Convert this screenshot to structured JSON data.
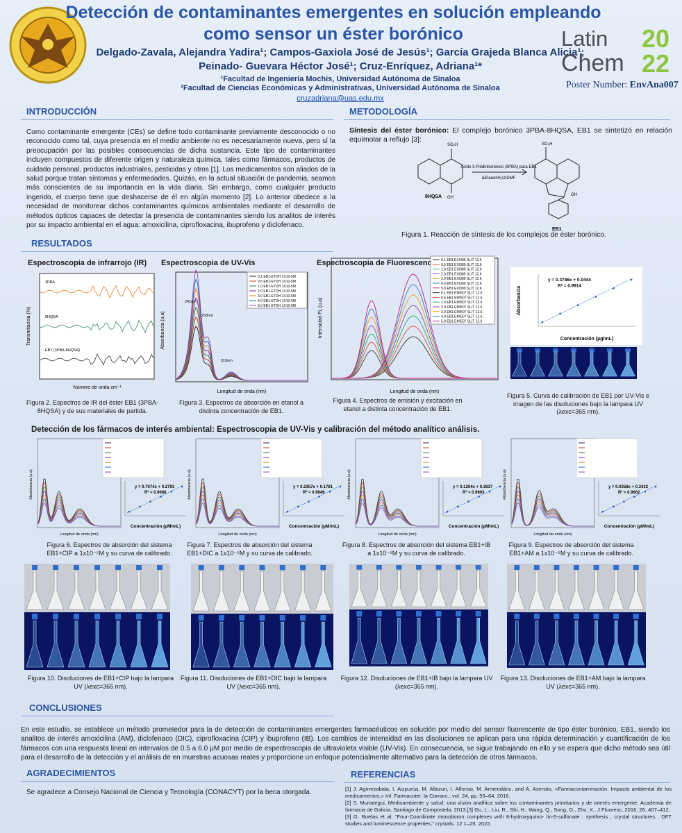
{
  "header": {
    "title_line1": "Detección de contaminantes emergentes en solución empleando",
    "title_line2": "como sensor un éster borónico",
    "authors_line1": "Delgado-Zavala, Alejandra Yadira¹; Campos-Gaxiola José de Jesús¹; García Grajeda Blanca Alicia¹;",
    "authors_line2": "Peinado- Guevara Héctor José¹; Cruz-Enríquez, Adriana¹*",
    "affiliation1": "¹Facultad de Ingeniería Mochis, Universidad Autónoma de Sinaloa",
    "affiliation2": "²Facultad de Ciencias Económicas y Administrativas, Universidad Autónoma de Sinaloa",
    "email": "cruzadriana@uas.edu.mx",
    "logo_latin": "Latin",
    "logo_chem": "Chem",
    "logo_20": "20",
    "logo_22": "22",
    "poster_number_label": "Poster Number:",
    "poster_number": "EnvAna007"
  },
  "introduction": {
    "heading": "INTRODUCCIÓN",
    "text": "Como contaminante emergente (CEs) se define todo contaminante previamente desconocido o no reconocido como tal, cuya presencia en el medio ambiente no es necesariamente nueva, pero sí la preocupación por las posibles consecuencias de dicha sustancia. Este tipo de contaminantes incluyen compuestos de diferente origen y naturaleza química, tales como fármacos, productos de cuidado personal, productos industriales, pesticidas y otros [1]. Los medicamentos son aliados de la salud porque tratan síntomas y enfermedades. Quizás, en la actual situación de pandemia, seamos más conscientes de su importancia en la vida diaria. Sin embargo, como cualquier producto ingerido, el cuerpo tiene que deshacerse de él en algún momento [2]. Lo anterior obedece a la necesidad de monitorear dichos contaminantes químicos ambientales mediante el desarrollo de métodos ópticos capaces de detectar la presencia de contaminantes siendo los analitos de interés por su impacto ambiental en el agua: amoxicilina, ciprofloxacina, ibuprofeno y diclofenaco."
  },
  "methodology": {
    "heading": "METODOLOGÍA",
    "subheading": "Síntesis del éster borónico:",
    "text": "El complejo borónico 3PBA-8HQSA, EB1 se sintetizó en relación equimolar a reflujo [3]:",
    "reagent_label": "8HQSA",
    "product_label": "EB1",
    "arrow_top": "Ácido 3-Piridinborónico (3PBA) para EB1",
    "arrow_bottom": "ΔEtanol/H₂O/DMF",
    "figure1_caption": "Figura 1. Reacción de síntesis de los complejos de éster borónico."
  },
  "results": {
    "heading": "RESULTADOS",
    "ir": {
      "title": "Espectroscopia de infrarrojo (IR)",
      "y_label": "Transmitancia (%)",
      "x_label": "Número de onda cm⁻¹",
      "trace_labels": [
        "3PBA",
        "8HQSA",
        "EB1 (3PBA-8HQSA)"
      ],
      "caption": "Figura 2. Espectros de IR del éster EB1 (3PBA-8HQSA) y de sus materiales de partida."
    },
    "uv": {
      "title": "Espectroscopia de UV-Vis",
      "y_label": "Absorbancia (u.a)",
      "x_label": "Longitud de onda (nm)",
      "peaks": [
        "241nm",
        "258nm",
        "319nm"
      ],
      "legend": [
        "0.1 EB1-ETOH 1X10-5M",
        "0.5 EB1-ETOH 1X10-5M",
        "1.0 EB1-ETOH 1X10-5M",
        "2.0 EB1-ETOH 1X10-5M",
        "3.0 EB1-ETOH 1X10-5M",
        "4.0 EB1-ETOH 1X10-5M",
        "5.0 EB1-ETOH 1X10-5M"
      ],
      "caption": "Figura 3. Espectros de absorción en etanol a distinta concentración de EB1."
    },
    "fluorescence": {
      "title": "Espectroscopia de Fluorescencia",
      "y_label": "Intensidad FL (u.a)",
      "x_label": "Longitud de onda (nm)",
      "legend": [
        "0.1 EB1 EXI389 SLIT 12.6",
        "0.5 EB1 EXI389 SLIT 12.6",
        "1.0 EB1 EXI389 SLIT 12.6",
        "2.0 EB1 EXI389 SLIT 12.6",
        "3.0 EB1 EXI389 SLIT 12.6",
        "4.0 EB1 EXI389 SLIT 12.6",
        "5.0 EB1 EXI389 SLIT 12.6",
        "0.1 EB1 EMI507 SLIT 12.6",
        "0.5 EB1 EMI507 SLIT 12.6",
        "1.0 EB1 EMI507 SLIT 12.6",
        "2.0 EB1 EMI507 SLIT 12.6",
        "3.0 EB1 EMI507 SLIT 12.6",
        "4.0 EB1 EMI507 SLIT 12.6",
        "5.0 EB1 EMI507 SLIT 12.6"
      ],
      "caption": "Figura 4. Espectros de emisión y excitación en etanol a distinta concentración de EB1."
    },
    "calibration": {
      "equation": "y = 0.3786x + 0.0444",
      "r2": "R² = 0.9914",
      "y_label": "Absorbancia",
      "x_label": "Concentración (µg/mL)",
      "caption": "Figura 5. Curva de calibración de EB1 por UV-Vis e imagen de las disoluciones bajo la lampara UV (λexc=365 nm)."
    },
    "detection_heading": "Detección de los fármacos de interés ambiental: Espectroscopia de UV-Vis y calibración del método analítico análisis.",
    "panels": [
      {
        "equation": "y = 0.7074x + 0.2793",
        "r2": "R² = 0.9666",
        "x_label": "Longitud de onda (nm)",
        "y_label": "Absorbancia (u.a)",
        "cal_x_label": "Concentración (µM/mL)",
        "caption": "Figura 6. Espectros de absorción del sistema EB1+CIP a 1x10⁻⁵M y su curva de calibrado.",
        "photo_caption": "Figura 10. Disoluciones de EB1+CIP bajo la lampara UV (λexc=365 nm)."
      },
      {
        "equation": "y = 0.2357x + 0.1781",
        "r2": "R² = 0.9649",
        "x_label": "Longitud de onda (nm)",
        "y_label": "Absorbancia (u.a)",
        "cal_x_label": "Concentración (µM/mL)",
        "caption": "Figura 7. Espectros de absorción del sistema EB1+DIC a 1x10⁻⁵M y su curva de calibrado.",
        "photo_caption": "Figura 11. Disoluciones de EB1+DIC bajo la lampara UV (λexc=365 nm)."
      },
      {
        "equation": "y = 0.1204x + 0.3837",
        "r2": "R² = 0.9993",
        "x_label": "Longitud de onda (nm)",
        "y_label": "Absorbancia (u.a)",
        "cal_x_label": "Concentración (µM/mL)",
        "caption": "Figura 8. Espectros de absorción del sistema EB1+IB a 1x10⁻⁵M y su curva de calibrado.",
        "photo_caption": "Figura 12. Disoluciones de EB1+IB bajo la lampara UV (λexc=365 nm)."
      },
      {
        "equation": "y = 0.0358x + 0.2432",
        "r2": "R² = 0.9662",
        "x_label": "Longitud de onda (nm)",
        "y_label": "Absorbancia (u.a)",
        "cal_x_label": "Concentración (µM/mL)",
        "caption": "Figura 9. Espectros de absorción del sistema EB1+AM a 1x10⁻⁵M y su curva de calibrado.",
        "photo_caption": "Figura 13. Disoluciones de EB1+AM bajo la lampara UV (λexc=365 nm)."
      }
    ]
  },
  "conclusions": {
    "heading": "CONCLUSIONES",
    "text": "En este estudio, se establece un método prometedor para la de detección de contaminantes emergentes farmacéuticos en solución por medio del sensor fluorescente de tipo éster borónico, EB1, siendo los analitos de interés amoxicilina (AM), diclofenaco (DIC), ciprofloxacina (CIP) y ibuprofeno (IB). Los cambios de intensidad en las disoluciones se aplican para una rápida determinación y cuantificación de los fármacos con una respuesta lineal en intervalos de 0.5 a 6.0 µM por medio de espectroscopia de ultravioleta visible (UV-Vis). En consecuencia, se sigue trabajando en ello y se espera que dicho método sea útil para el desarrollo de la detección y el análisis de en muestras acuosas reales y proporcione un enfoque potencialmente alternativo para la detección de otros fármacos."
  },
  "acknowledgements": {
    "heading": "AGRADECIMIENTOS",
    "text": "Se agradece a Consejo Nacional de Ciencia y Tecnología (CONACYT) por la beca otorgada."
  },
  "references": {
    "heading": "REFERENCIAS",
    "items": [
      "[1] J. Agirrezabala, I. Aizpurúa, M. Albizuri, I. Alfonso, M. Armendáriz, and A. Asensio, «Farmacontaminación. Impacto ambiental de los medicamentos,» Inf. Farmacoter. la Comarc., vol. 24, pp. 59–64, 2016.",
      "[2] S. Muriategui, Medioambiente y salud: una visión analítica sobre los contaminantes prioritarios y de interés emergente, Academia de farmacia de Galicia, Santiago de Compostela, 2013.[3] Gu, L., Liu, R., Shi, H., Wang, Q., Song, G., Zhu, X., J Fluoresc, 2016, 26, 407–412.",
      "[3] G. Ruelas et al. “Four-Coordinate monoboron complexes with 8-hydroxyquino- lin-5-sulfonate : synthesis , crystal structures , DFT studies and luminescence properties.” crystals. 12 1–25, 2022."
    ]
  }
}
